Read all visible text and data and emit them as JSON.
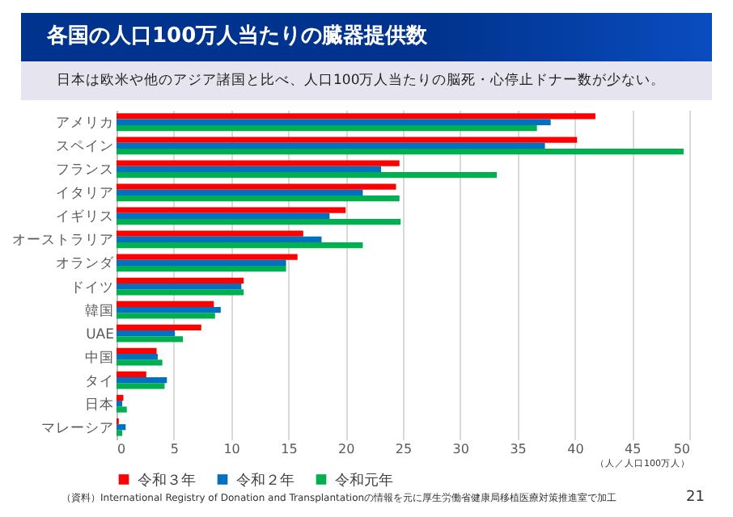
{
  "chart_data": {
    "type": "bar",
    "orientation": "horizontal",
    "title": "各国の人口100万人当たりの臓器提供数",
    "subtitle": "日本は欧米や他のアジア諸国と比べ、人口100万人当たりの脳死・心停止ドナー数が少ない。",
    "xlabel": "（人／人口100万人）",
    "categories": [
      "アメリカ",
      "スペイン",
      "フランス",
      "イタリア",
      "イギリス",
      "オーストラリア",
      "オランダ",
      "ドイツ",
      "韓国",
      "UAE",
      "中国",
      "タイ",
      "日本",
      "マレーシア"
    ],
    "series": [
      {
        "name": "令和３年",
        "color": "#ff0000",
        "values": [
          41.8,
          40.2,
          24.7,
          24.4,
          20.0,
          16.3,
          15.8,
          11.1,
          8.5,
          7.4,
          3.5,
          2.6,
          0.6,
          0.2
        ]
      },
      {
        "name": "令和２年",
        "color": "#0070c0",
        "values": [
          37.9,
          37.4,
          23.1,
          21.5,
          18.6,
          17.9,
          14.8,
          10.9,
          9.1,
          5.1,
          3.6,
          4.4,
          0.5,
          0.8
        ]
      },
      {
        "name": "令和元年",
        "color": "#00b050",
        "values": [
          36.7,
          49.5,
          33.2,
          24.7,
          24.8,
          21.5,
          14.8,
          11.1,
          8.6,
          5.8,
          4.0,
          4.2,
          0.9,
          0.5
        ]
      }
    ],
    "xlim": [
      0,
      50
    ],
    "xticks": [
      0,
      5,
      10,
      15,
      20,
      25,
      30,
      35,
      40,
      45,
      50
    ],
    "grid": "x",
    "legend": "bottom",
    "annotations": [
      "（資料）International Registry of Donation and Transplantationの情報を元に厚生労働省健康局移植医療対策推進室で加工",
      "21"
    ]
  }
}
